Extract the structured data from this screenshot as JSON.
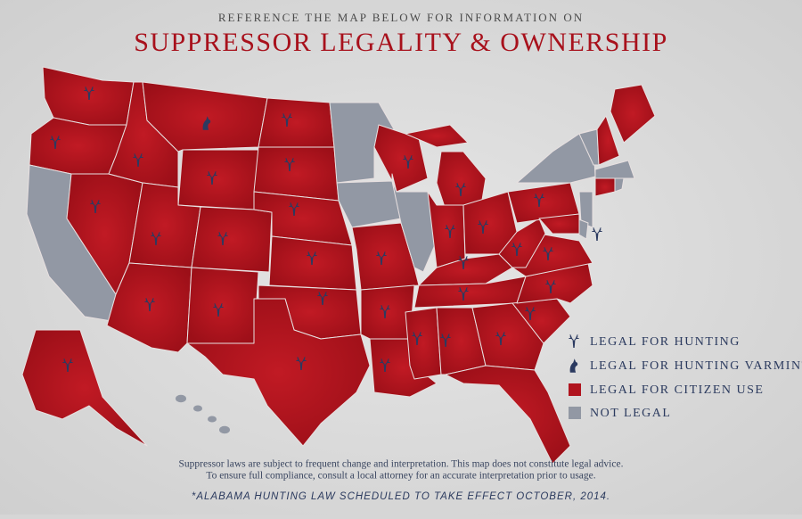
{
  "header": {
    "kicker": "REFERENCE THE MAP BELOW FOR INFORMATION ON",
    "title": "SUPPRESSOR LEGALITY & OWNERSHIP"
  },
  "legend": [
    {
      "label": "LEGAL FOR HUNTING"
    },
    {
      "label": "LEGAL FOR HUNTING VARMINT"
    },
    {
      "label": "LEGAL FOR CITIZEN USE"
    },
    {
      "label": "NOT LEGAL"
    }
  ],
  "disclaimer": [
    "Suppressor laws are subject to frequent change and interpretation. This map does not constitute legal advice.",
    "To ensure full compliance, consult a local attorney for an accurate interpretation prior to usage."
  ],
  "footnote": "*ALABAMA HUNTING LAW SCHEDULED TO TAKE EFFECT OCTOBER, 2014."
}
